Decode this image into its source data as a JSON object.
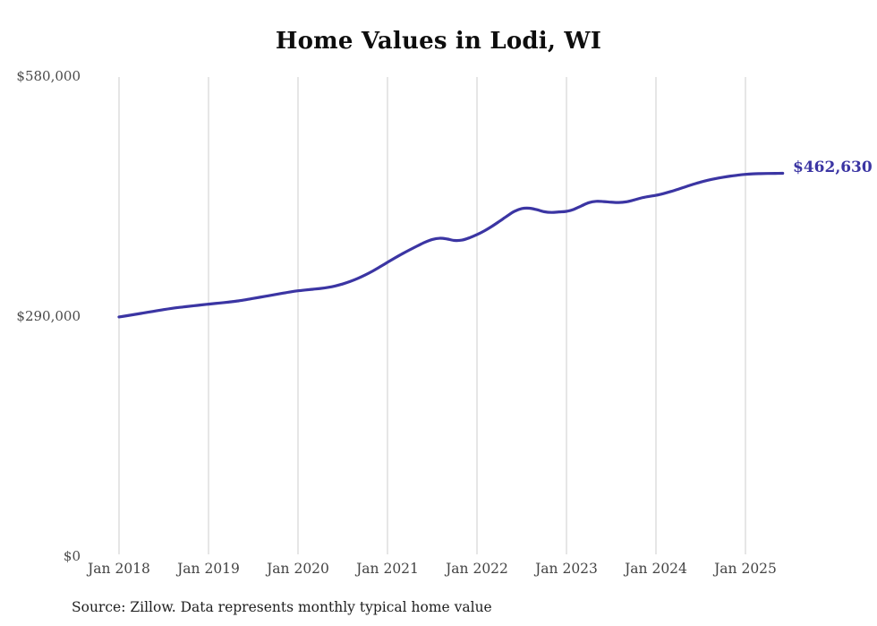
{
  "page": {
    "background": "#ffffff"
  },
  "chart_data": {
    "type": "line",
    "title": "Home Values in Lodi, WI",
    "end_label": "$462,630",
    "final_value": 462630,
    "ylim": [
      0,
      580000
    ],
    "grid": "vertical-gridlines-only",
    "legend": "none",
    "line_color": "#3b35a3",
    "grid_color": "#cccccc",
    "axis_text_color": "#444444",
    "y_ticks": [
      {
        "label": "$0",
        "value": 0
      },
      {
        "label": "$290,000",
        "value": 290000
      },
      {
        "label": "$580,000",
        "value": 580000
      }
    ],
    "x_ticks": [
      {
        "label": "Jan 2018",
        "month_index": 0
      },
      {
        "label": "Jan 2019",
        "month_index": 12
      },
      {
        "label": "Jan 2020",
        "month_index": 24
      },
      {
        "label": "Jan 2021",
        "month_index": 36
      },
      {
        "label": "Jan 2022",
        "month_index": 48
      },
      {
        "label": "Jan 2023",
        "month_index": 60
      },
      {
        "label": "Jan 2024",
        "month_index": 72
      },
      {
        "label": "Jan 2025",
        "month_index": 84
      }
    ],
    "series": [
      {
        "name": "Monthly typical home value",
        "start_month": "2018-01",
        "end_month": "2025-06",
        "values": [
          289000,
          290400,
          291900,
          293400,
          294900,
          296400,
          297900,
          299300,
          300500,
          301500,
          302500,
          303500,
          304500,
          305400,
          306300,
          307300,
          308400,
          309800,
          311400,
          313000,
          314600,
          316200,
          317800,
          319300,
          320600,
          321600,
          322500,
          323400,
          324700,
          326500,
          328900,
          331900,
          335500,
          339700,
          344400,
          349600,
          355000,
          360300,
          365400,
          370200,
          374800,
          379200,
          382600,
          384100,
          383200,
          381400,
          381900,
          384700,
          388500,
          393100,
          398500,
          404500,
          410700,
          416500,
          419900,
          420400,
          418700,
          416200,
          415300,
          415900,
          416600,
          419100,
          423200,
          427100,
          428700,
          428400,
          427700,
          427300,
          428100,
          430200,
          432700,
          434500,
          436000,
          438100,
          440600,
          443400,
          446400,
          449300,
          452000,
          454300,
          456200,
          457800,
          459200,
          460400,
          461300,
          461900,
          462200,
          462400,
          462500,
          462630
        ]
      }
    ]
  },
  "source": {
    "text": "Source: Zillow. Data represents monthly typical home value"
  }
}
